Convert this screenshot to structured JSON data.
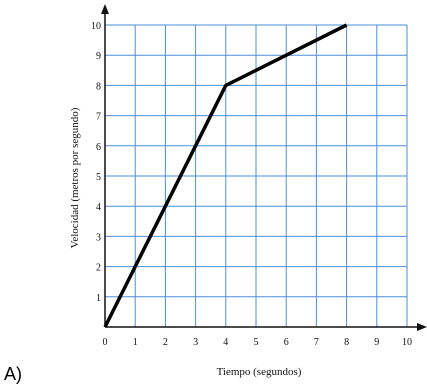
{
  "item_label": "A)",
  "colors": {
    "grid": "#4a90d9",
    "line": "#000000",
    "axis": "#111111"
  },
  "chart_data": {
    "type": "line",
    "title": "",
    "xlabel": "Tiempo (segundos)",
    "ylabel": "Velocidad (metros por segundo)",
    "xlim": [
      0,
      10
    ],
    "ylim": [
      0,
      10
    ],
    "xticks": [
      0,
      1,
      2,
      3,
      4,
      5,
      6,
      7,
      8,
      9,
      10
    ],
    "yticks": [
      1,
      2,
      3,
      4,
      5,
      6,
      7,
      8,
      9,
      10
    ],
    "grid": true,
    "series": [
      {
        "x": [
          0,
          4,
          8
        ],
        "y": [
          0,
          8,
          10
        ]
      }
    ]
  }
}
